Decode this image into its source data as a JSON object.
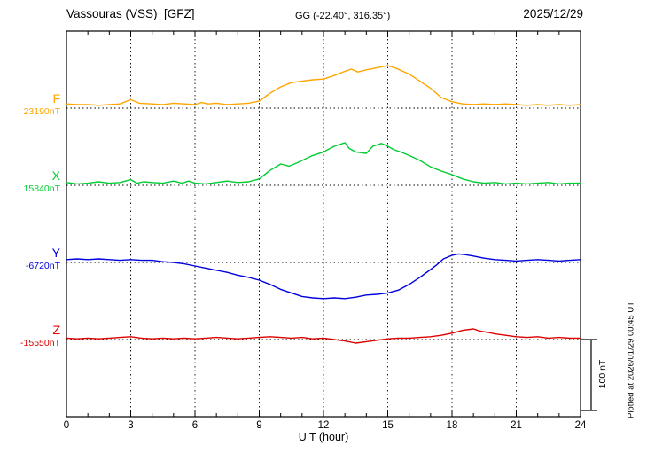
{
  "header": {
    "station": "Vassouras (VSS)  [GFZ]",
    "coords": "GG (-22.40°, 316.35°)",
    "date": "2025/12/29"
  },
  "footer": {
    "plotted_at": "Plotted at 2026/01/29 00:45 UT"
  },
  "chart_data": {
    "type": "line",
    "title": "Vassouras (VSS) magnetogram 2025/12/29",
    "xlabel": "U T (hour)",
    "ylabel": "",
    "xlim": [
      0,
      24
    ],
    "x_ticks": [
      0,
      3,
      6,
      9,
      12,
      15,
      18,
      21,
      24
    ],
    "grid": "vertical-dotted",
    "scale_bar": {
      "label": "100 nT",
      "nT": 100
    },
    "series": [
      {
        "name": "F",
        "baseline_label": "23190nT",
        "baseline_nT": 23190,
        "color": "#FFA500",
        "units": "nT offset from baseline",
        "points": [
          [
            0,
            6
          ],
          [
            0.5,
            5
          ],
          [
            1,
            5
          ],
          [
            1.5,
            4
          ],
          [
            2,
            5
          ],
          [
            2.5,
            6
          ],
          [
            3,
            12
          ],
          [
            3.4,
            7
          ],
          [
            4,
            6
          ],
          [
            4.5,
            5
          ],
          [
            5,
            7
          ],
          [
            5.5,
            6
          ],
          [
            6,
            5
          ],
          [
            6.3,
            8
          ],
          [
            6.6,
            6
          ],
          [
            7,
            7
          ],
          [
            7.5,
            5
          ],
          [
            8,
            6
          ],
          [
            8.5,
            7
          ],
          [
            9,
            10
          ],
          [
            9.5,
            21
          ],
          [
            10,
            30
          ],
          [
            10.5,
            36
          ],
          [
            11,
            38
          ],
          [
            11.5,
            40
          ],
          [
            12,
            41
          ],
          [
            12.5,
            46
          ],
          [
            13,
            52
          ],
          [
            13.3,
            55
          ],
          [
            13.6,
            51
          ],
          [
            14,
            54
          ],
          [
            14.5,
            57
          ],
          [
            15,
            60
          ],
          [
            15.4,
            56
          ],
          [
            16,
            48
          ],
          [
            16.5,
            38
          ],
          [
            17,
            28
          ],
          [
            17.5,
            15
          ],
          [
            18,
            9
          ],
          [
            18.5,
            6
          ],
          [
            19,
            5
          ],
          [
            19.5,
            6
          ],
          [
            20,
            5
          ],
          [
            20.5,
            6
          ],
          [
            21,
            5
          ],
          [
            21.5,
            4
          ],
          [
            22,
            5
          ],
          [
            22.5,
            4
          ],
          [
            23,
            5
          ],
          [
            23.5,
            4
          ],
          [
            24,
            5
          ]
        ]
      },
      {
        "name": "X",
        "baseline_label": "15840nT",
        "baseline_nT": 15840,
        "color": "#00CC33",
        "units": "nT offset from baseline",
        "points": [
          [
            0,
            4
          ],
          [
            0.5,
            2
          ],
          [
            1,
            3
          ],
          [
            1.5,
            5
          ],
          [
            2,
            3
          ],
          [
            2.5,
            4
          ],
          [
            3,
            8
          ],
          [
            3.3,
            3
          ],
          [
            3.6,
            5
          ],
          [
            4,
            4
          ],
          [
            4.5,
            3
          ],
          [
            5,
            6
          ],
          [
            5.4,
            3
          ],
          [
            5.7,
            6
          ],
          [
            6,
            3
          ],
          [
            6.5,
            2
          ],
          [
            7,
            4
          ],
          [
            7.5,
            6
          ],
          [
            8,
            4
          ],
          [
            8.5,
            5
          ],
          [
            9,
            9
          ],
          [
            9.5,
            21
          ],
          [
            10,
            30
          ],
          [
            10.4,
            27
          ],
          [
            10.8,
            32
          ],
          [
            11,
            35
          ],
          [
            11.5,
            42
          ],
          [
            12,
            47
          ],
          [
            12.5,
            55
          ],
          [
            13,
            60
          ],
          [
            13.2,
            52
          ],
          [
            13.5,
            47
          ],
          [
            14,
            45
          ],
          [
            14.3,
            55
          ],
          [
            14.7,
            59
          ],
          [
            15,
            55
          ],
          [
            15.3,
            50
          ],
          [
            15.6,
            47
          ],
          [
            16,
            42
          ],
          [
            16.5,
            35
          ],
          [
            17,
            26
          ],
          [
            17.5,
            20
          ],
          [
            18,
            15
          ],
          [
            18.5,
            9
          ],
          [
            19,
            5
          ],
          [
            19.5,
            3
          ],
          [
            20,
            4
          ],
          [
            20.5,
            2
          ],
          [
            21,
            3
          ],
          [
            21.5,
            2
          ],
          [
            22,
            3
          ],
          [
            22.5,
            4
          ],
          [
            23,
            2
          ],
          [
            23.5,
            3
          ],
          [
            24,
            3
          ]
        ]
      },
      {
        "name": "Y",
        "baseline_label": "-6720nT",
        "baseline_nT": -6720,
        "color": "#0000DD",
        "units": "nT offset from baseline",
        "points": [
          [
            0,
            4
          ],
          [
            0.5,
            5
          ],
          [
            1,
            4
          ],
          [
            1.5,
            5
          ],
          [
            2,
            4
          ],
          [
            2.5,
            3
          ],
          [
            3,
            4
          ],
          [
            3.5,
            3
          ],
          [
            4,
            3
          ],
          [
            4.5,
            1
          ],
          [
            5,
            0
          ],
          [
            5.5,
            -2
          ],
          [
            6,
            -5
          ],
          [
            6.5,
            -8
          ],
          [
            7,
            -11
          ],
          [
            7.5,
            -14
          ],
          [
            8,
            -18
          ],
          [
            8.5,
            -21
          ],
          [
            9,
            -25
          ],
          [
            9.5,
            -31
          ],
          [
            10,
            -38
          ],
          [
            10.5,
            -43
          ],
          [
            11,
            -48
          ],
          [
            11.5,
            -50
          ],
          [
            12,
            -51
          ],
          [
            12.5,
            -50
          ],
          [
            13,
            -51
          ],
          [
            13.5,
            -49
          ],
          [
            14,
            -46
          ],
          [
            14.5,
            -45
          ],
          [
            15,
            -43
          ],
          [
            15.5,
            -39
          ],
          [
            16,
            -31
          ],
          [
            16.5,
            -21
          ],
          [
            17,
            -10
          ],
          [
            17.3,
            -3
          ],
          [
            17.6,
            5
          ],
          [
            18,
            10
          ],
          [
            18.3,
            12
          ],
          [
            18.6,
            11
          ],
          [
            19,
            9
          ],
          [
            19.5,
            6
          ],
          [
            20,
            4
          ],
          [
            20.5,
            3
          ],
          [
            21,
            2
          ],
          [
            21.5,
            3
          ],
          [
            22,
            4
          ],
          [
            22.5,
            3
          ],
          [
            23,
            2
          ],
          [
            23.5,
            3
          ],
          [
            24,
            4
          ]
        ]
      },
      {
        "name": "Z",
        "baseline_label": "-15550nT",
        "baseline_nT": -15550,
        "color": "#DD0000",
        "units": "nT offset from baseline",
        "points": [
          [
            0,
            2
          ],
          [
            0.5,
            1
          ],
          [
            1,
            2
          ],
          [
            1.5,
            1
          ],
          [
            2,
            2
          ],
          [
            2.5,
            3
          ],
          [
            3,
            4
          ],
          [
            3.5,
            2
          ],
          [
            4,
            1
          ],
          [
            4.5,
            2
          ],
          [
            5,
            1
          ],
          [
            5.5,
            2
          ],
          [
            6,
            1
          ],
          [
            6.5,
            2
          ],
          [
            7,
            3
          ],
          [
            7.5,
            2
          ],
          [
            8,
            1
          ],
          [
            8.5,
            2
          ],
          [
            9,
            3
          ],
          [
            9.5,
            4
          ],
          [
            10,
            3
          ],
          [
            10.5,
            2
          ],
          [
            11,
            3
          ],
          [
            11.5,
            1
          ],
          [
            12,
            2
          ],
          [
            12.5,
            0
          ],
          [
            13,
            -2
          ],
          [
            13.5,
            -5
          ],
          [
            14,
            -3
          ],
          [
            14.5,
            -1
          ],
          [
            15,
            1
          ],
          [
            15.5,
            2
          ],
          [
            16,
            2
          ],
          [
            16.5,
            3
          ],
          [
            17,
            4
          ],
          [
            17.5,
            6
          ],
          [
            18,
            9
          ],
          [
            18.5,
            13
          ],
          [
            19,
            15
          ],
          [
            19.3,
            12
          ],
          [
            19.7,
            10
          ],
          [
            20,
            8
          ],
          [
            20.5,
            6
          ],
          [
            21,
            4
          ],
          [
            21.5,
            3
          ],
          [
            22,
            4
          ],
          [
            22.5,
            2
          ],
          [
            23,
            3
          ],
          [
            23.5,
            2
          ],
          [
            24,
            2
          ]
        ]
      }
    ]
  }
}
